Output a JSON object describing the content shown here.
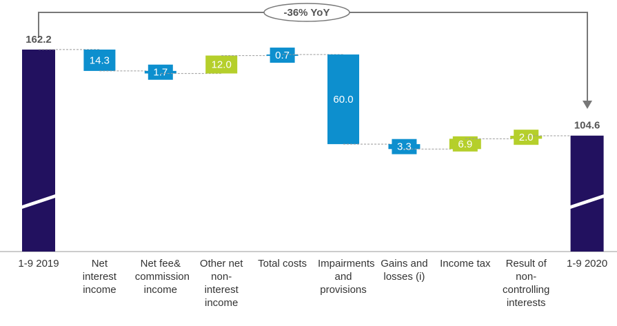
{
  "chart_data": {
    "type": "waterfall",
    "categories": [
      "1-9 2019",
      "Net interest income",
      "Net fee& commission income",
      "Other net non-interest income",
      "Total costs",
      "Impairments and provisions",
      "Gains and losses (i)",
      "Income tax",
      "Result of non-controlling interests",
      "1-9 2020"
    ],
    "values": [
      162.2,
      -14.3,
      -1.7,
      12.0,
      0.7,
      -60.0,
      -3.3,
      6.9,
      2.0,
      104.6
    ],
    "value_labels": [
      "162.2",
      "14.3",
      "1.7",
      "12.0",
      "0.7",
      "60.0",
      "3.3",
      "6.9",
      "2.0",
      "104.6"
    ],
    "colors": [
      "#22115f",
      "#0d8fce",
      "#0d8fce",
      "#b5cf2b",
      "#0d8fce",
      "#0d8fce",
      "#0d8fce",
      "#b5cf2b",
      "#b5cf2b",
      "#22115f"
    ],
    "ylim": [
      27,
      170
    ],
    "annotation": "-36% YoY"
  }
}
